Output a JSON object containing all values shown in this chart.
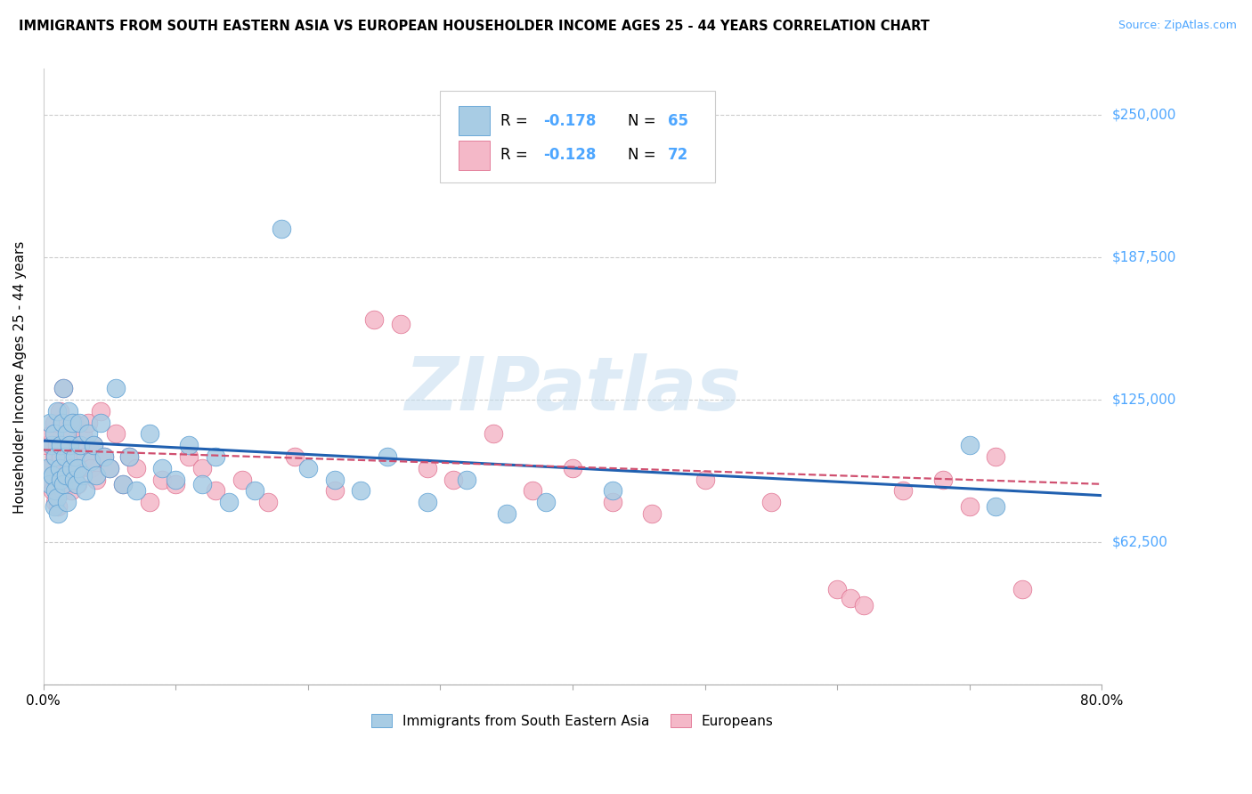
{
  "title": "IMMIGRANTS FROM SOUTH EASTERN ASIA VS EUROPEAN HOUSEHOLDER INCOME AGES 25 - 44 YEARS CORRELATION CHART",
  "source": "Source: ZipAtlas.com",
  "ylabel": "Householder Income Ages 25 - 44 years",
  "x_min": 0.0,
  "x_max": 0.8,
  "y_min": 0,
  "y_max": 270000,
  "yticks": [
    0,
    62500,
    125000,
    187500,
    250000
  ],
  "ytick_labels": [
    "",
    "$62,500",
    "$125,000",
    "$187,500",
    "$250,000"
  ],
  "xtick_labels": [
    "0.0%",
    "",
    "",
    "",
    "",
    "",
    "",
    "",
    "80.0%"
  ],
  "blue_color": "#a8cce4",
  "pink_color": "#f4b8c8",
  "blue_edge_color": "#5a9fd4",
  "pink_edge_color": "#e07090",
  "blue_line_color": "#2060b0",
  "pink_line_color": "#d05070",
  "watermark": "ZIPatlas",
  "legend_R1": "R = -0.178",
  "legend_N1": "N = 65",
  "legend_R2": "R = -0.128",
  "legend_N2": "N = 72",
  "blue_label": "Immigrants from South Eastern Asia",
  "pink_label": "Europeans",
  "accent_color": "#4da6ff",
  "blue_x": [
    0.003,
    0.005,
    0.005,
    0.006,
    0.007,
    0.008,
    0.008,
    0.009,
    0.009,
    0.01,
    0.01,
    0.011,
    0.012,
    0.013,
    0.013,
    0.014,
    0.015,
    0.015,
    0.016,
    0.017,
    0.018,
    0.018,
    0.019,
    0.02,
    0.021,
    0.022,
    0.023,
    0.024,
    0.025,
    0.026,
    0.027,
    0.028,
    0.03,
    0.032,
    0.034,
    0.036,
    0.038,
    0.04,
    0.043,
    0.046,
    0.05,
    0.055,
    0.06,
    0.065,
    0.07,
    0.08,
    0.09,
    0.1,
    0.11,
    0.12,
    0.13,
    0.14,
    0.16,
    0.18,
    0.2,
    0.22,
    0.24,
    0.26,
    0.29,
    0.32,
    0.35,
    0.38,
    0.43,
    0.7,
    0.72
  ],
  "blue_y": [
    95000,
    88000,
    115000,
    105000,
    92000,
    78000,
    110000,
    85000,
    100000,
    82000,
    120000,
    75000,
    95000,
    105000,
    90000,
    115000,
    130000,
    88000,
    100000,
    92000,
    110000,
    80000,
    120000,
    105000,
    95000,
    115000,
    90000,
    100000,
    88000,
    95000,
    115000,
    105000,
    92000,
    85000,
    110000,
    98000,
    105000,
    92000,
    115000,
    100000,
    95000,
    130000,
    88000,
    100000,
    85000,
    110000,
    95000,
    90000,
    105000,
    88000,
    100000,
    80000,
    85000,
    200000,
    95000,
    90000,
    85000,
    100000,
    80000,
    90000,
    75000,
    80000,
    85000,
    105000,
    78000
  ],
  "pink_x": [
    0.002,
    0.004,
    0.005,
    0.006,
    0.007,
    0.008,
    0.008,
    0.009,
    0.009,
    0.01,
    0.01,
    0.011,
    0.012,
    0.012,
    0.013,
    0.014,
    0.015,
    0.015,
    0.016,
    0.017,
    0.018,
    0.019,
    0.02,
    0.021,
    0.022,
    0.023,
    0.024,
    0.025,
    0.026,
    0.028,
    0.03,
    0.032,
    0.034,
    0.036,
    0.038,
    0.04,
    0.043,
    0.046,
    0.05,
    0.055,
    0.06,
    0.065,
    0.07,
    0.08,
    0.09,
    0.1,
    0.11,
    0.12,
    0.13,
    0.15,
    0.17,
    0.19,
    0.22,
    0.25,
    0.27,
    0.29,
    0.31,
    0.34,
    0.37,
    0.4,
    0.43,
    0.46,
    0.5,
    0.55,
    0.6,
    0.61,
    0.62,
    0.65,
    0.68,
    0.7,
    0.72,
    0.74
  ],
  "pink_y": [
    105000,
    90000,
    95000,
    110000,
    85000,
    100000,
    115000,
    80000,
    92000,
    105000,
    88000,
    78000,
    120000,
    95000,
    100000,
    115000,
    85000,
    130000,
    92000,
    105000,
    88000,
    95000,
    110000,
    85000,
    100000,
    115000,
    92000,
    105000,
    88000,
    95000,
    110000,
    100000,
    115000,
    95000,
    105000,
    90000,
    120000,
    100000,
    95000,
    110000,
    88000,
    100000,
    95000,
    80000,
    90000,
    88000,
    100000,
    95000,
    85000,
    90000,
    80000,
    100000,
    85000,
    160000,
    158000,
    95000,
    90000,
    110000,
    85000,
    95000,
    80000,
    75000,
    90000,
    80000,
    42000,
    38000,
    35000,
    85000,
    90000,
    78000,
    100000,
    42000
  ]
}
